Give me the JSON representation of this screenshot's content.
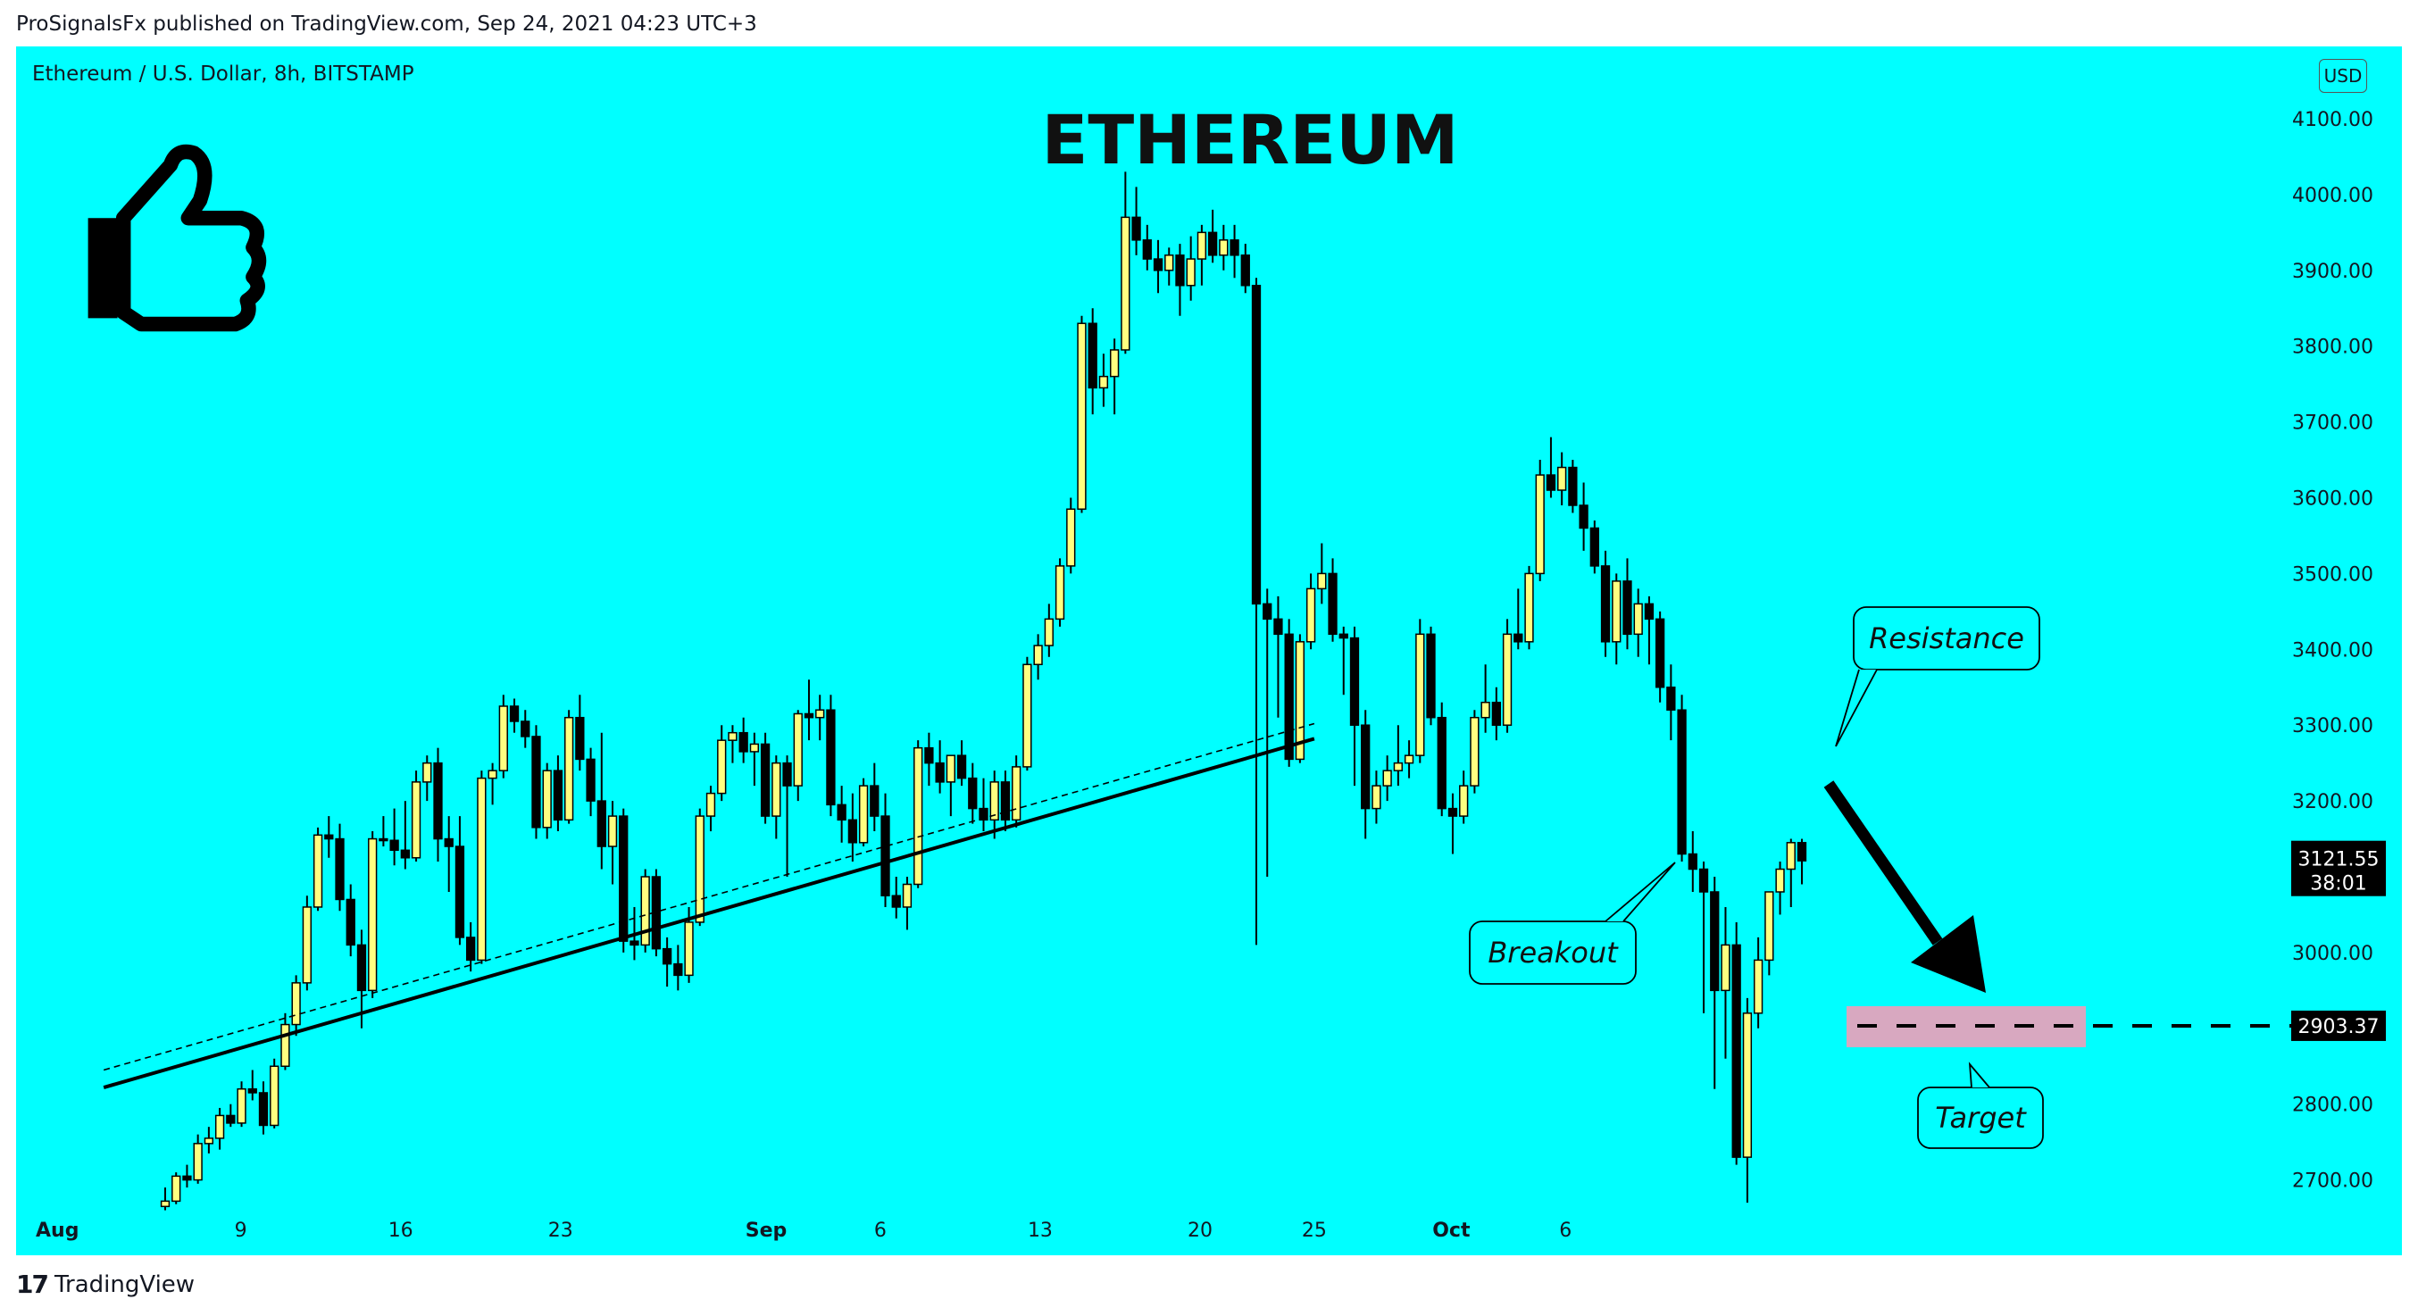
{
  "header": {
    "text": "ProSignalsFx published on TradingView.com, Sep 24, 2021 04:23 UTC+3"
  },
  "symbol": {
    "text": "Ethereum / U.S. Dollar, 8h, BITSTAMP"
  },
  "currency_button": "USD",
  "footer": {
    "brand": "TradingView",
    "mark": "17"
  },
  "colors": {
    "background": "#00ffff",
    "bull": "#ffff80",
    "bear": "#000000",
    "zone": "#d8a8c0"
  },
  "icons": [
    "thumbs-up-icon",
    "tradingview-logo-icon"
  ],
  "chart_data": {
    "type": "candlestick",
    "title": "ETHEREUM",
    "ylim": [
      2650,
      4150
    ],
    "y_ticks": [
      4100,
      4000,
      3900,
      3800,
      3700,
      3600,
      3500,
      3400,
      3300,
      3200,
      3100,
      3000,
      2900,
      2800,
      2700
    ],
    "y_tick_labels": [
      "4100.00",
      "4000.00",
      "3900.00",
      "3800.00",
      "3700.00",
      "3600.00",
      "3500.00",
      "3400.00",
      "3300.00",
      "3200.00",
      "3000.00",
      "2800.00",
      "2700.00"
    ],
    "x_labels": [
      "Aug",
      "9",
      "16",
      "23",
      "Sep",
      "6",
      "13",
      "20",
      "25",
      "Oct",
      "6"
    ],
    "x_dates": [
      "2021-08-01",
      "2021-08-09",
      "2021-08-16",
      "2021-08-23",
      "2021-09-01",
      "2021-09-06",
      "2021-09-13",
      "2021-09-20",
      "2021-09-25",
      "2021-10-01",
      "2021-10-06"
    ],
    "price_label": {
      "value": "3121.55",
      "countdown": "38:01"
    },
    "target_label": "2903.37",
    "target_price": 2903.37,
    "trendlines": [
      {
        "style": "solid",
        "from": [
          "2021-08-03",
          2822
        ],
        "to": [
          "2021-09-25",
          3282
        ]
      },
      {
        "style": "dashed",
        "from": [
          "2021-08-03",
          2845
        ],
        "to": [
          "2021-09-25",
          3302
        ]
      }
    ],
    "annotations": [
      {
        "text": "Resistance"
      },
      {
        "text": "Breakout"
      },
      {
        "text": "Target"
      }
    ],
    "candles_ohlc": [
      [
        2665,
        2690,
        2660,
        2672
      ],
      [
        2672,
        2710,
        2668,
        2705
      ],
      [
        2705,
        2720,
        2690,
        2700
      ],
      [
        2700,
        2760,
        2695,
        2748
      ],
      [
        2748,
        2770,
        2735,
        2755
      ],
      [
        2755,
        2795,
        2740,
        2785
      ],
      [
        2785,
        2800,
        2770,
        2775
      ],
      [
        2775,
        2830,
        2770,
        2820
      ],
      [
        2820,
        2845,
        2805,
        2815
      ],
      [
        2815,
        2830,
        2760,
        2772
      ],
      [
        2772,
        2860,
        2768,
        2850
      ],
      [
        2850,
        2920,
        2845,
        2905
      ],
      [
        2905,
        2970,
        2890,
        2960
      ],
      [
        2960,
        3075,
        2950,
        3060
      ],
      [
        3060,
        3165,
        3055,
        3155
      ],
      [
        3155,
        3180,
        3125,
        3150
      ],
      [
        3150,
        3170,
        3055,
        3070
      ],
      [
        3070,
        3090,
        2995,
        3010
      ],
      [
        3010,
        3030,
        2900,
        2950
      ],
      [
        2950,
        3160,
        2940,
        3150
      ],
      [
        3150,
        3180,
        3140,
        3148
      ],
      [
        3148,
        3190,
        3115,
        3135
      ],
      [
        3135,
        3200,
        3110,
        3125
      ],
      [
        3125,
        3240,
        3120,
        3225
      ],
      [
        3225,
        3260,
        3200,
        3250
      ],
      [
        3250,
        3270,
        3120,
        3150
      ],
      [
        3150,
        3180,
        3080,
        3140
      ],
      [
        3140,
        3180,
        3010,
        3020
      ],
      [
        3020,
        3040,
        2975,
        2990
      ],
      [
        2990,
        3240,
        2985,
        3230
      ],
      [
        3230,
        3250,
        3195,
        3240
      ],
      [
        3240,
        3340,
        3230,
        3325
      ],
      [
        3325,
        3335,
        3290,
        3305
      ],
      [
        3305,
        3320,
        3270,
        3285
      ],
      [
        3285,
        3300,
        3150,
        3165
      ],
      [
        3165,
        3250,
        3150,
        3240
      ],
      [
        3240,
        3260,
        3160,
        3175
      ],
      [
        3175,
        3320,
        3170,
        3310
      ],
      [
        3310,
        3340,
        3240,
        3255
      ],
      [
        3255,
        3270,
        3180,
        3200
      ],
      [
        3200,
        3290,
        3110,
        3140
      ],
      [
        3140,
        3200,
        3090,
        3180
      ],
      [
        3180,
        3190,
        3000,
        3015
      ],
      [
        3015,
        3060,
        2990,
        3010
      ],
      [
        3010,
        3110,
        3000,
        3100
      ],
      [
        3100,
        3110,
        2995,
        3005
      ],
      [
        3005,
        3020,
        2955,
        2985
      ],
      [
        2985,
        3010,
        2950,
        2970
      ],
      [
        2970,
        3060,
        2960,
        3040
      ],
      [
        3040,
        3190,
        3035,
        3180
      ],
      [
        3180,
        3220,
        3160,
        3210
      ],
      [
        3210,
        3300,
        3200,
        3280
      ],
      [
        3280,
        3300,
        3250,
        3290
      ],
      [
        3290,
        3310,
        3250,
        3265
      ],
      [
        3265,
        3290,
        3220,
        3275
      ],
      [
        3275,
        3290,
        3170,
        3180
      ],
      [
        3180,
        3260,
        3150,
        3250
      ],
      [
        3250,
        3260,
        3100,
        3220
      ],
      [
        3220,
        3320,
        3200,
        3315
      ],
      [
        3315,
        3360,
        3280,
        3310
      ],
      [
        3310,
        3340,
        3280,
        3320
      ],
      [
        3320,
        3340,
        3180,
        3195
      ],
      [
        3195,
        3220,
        3145,
        3175
      ],
      [
        3175,
        3210,
        3120,
        3145
      ],
      [
        3145,
        3230,
        3140,
        3220
      ],
      [
        3220,
        3250,
        3160,
        3180
      ],
      [
        3180,
        3210,
        3060,
        3075
      ],
      [
        3075,
        3100,
        3045,
        3060
      ],
      [
        3060,
        3100,
        3030,
        3090
      ],
      [
        3090,
        3280,
        3085,
        3270
      ],
      [
        3270,
        3290,
        3220,
        3250
      ],
      [
        3250,
        3280,
        3210,
        3225
      ],
      [
        3225,
        3260,
        3180,
        3260
      ],
      [
        3260,
        3280,
        3220,
        3230
      ],
      [
        3230,
        3250,
        3170,
        3190
      ],
      [
        3190,
        3230,
        3160,
        3175
      ],
      [
        3175,
        3240,
        3150,
        3225
      ],
      [
        3225,
        3240,
        3160,
        3175
      ],
      [
        3175,
        3260,
        3165,
        3245
      ],
      [
        3245,
        3390,
        3240,
        3380
      ],
      [
        3380,
        3420,
        3360,
        3405
      ],
      [
        3405,
        3460,
        3390,
        3440
      ],
      [
        3440,
        3520,
        3430,
        3510
      ],
      [
        3510,
        3600,
        3500,
        3585
      ],
      [
        3585,
        3840,
        3580,
        3830
      ],
      [
        3830,
        3850,
        3710,
        3745
      ],
      [
        3745,
        3790,
        3720,
        3760
      ],
      [
        3760,
        3810,
        3710,
        3795
      ],
      [
        3795,
        4030,
        3790,
        3970
      ],
      [
        3970,
        4010,
        3920,
        3940
      ],
      [
        3940,
        3960,
        3900,
        3915
      ],
      [
        3915,
        3940,
        3870,
        3900
      ],
      [
        3900,
        3930,
        3880,
        3920
      ],
      [
        3920,
        3935,
        3840,
        3880
      ],
      [
        3880,
        3945,
        3860,
        3915
      ],
      [
        3915,
        3960,
        3880,
        3950
      ],
      [
        3950,
        3980,
        3910,
        3920
      ],
      [
        3920,
        3960,
        3900,
        3940
      ],
      [
        3940,
        3960,
        3890,
        3920
      ],
      [
        3920,
        3935,
        3870,
        3880
      ],
      [
        3880,
        3890,
        3010,
        3460
      ],
      [
        3460,
        3480,
        3100,
        3440
      ],
      [
        3440,
        3470,
        3310,
        3420
      ],
      [
        3420,
        3440,
        3245,
        3255
      ],
      [
        3255,
        3420,
        3250,
        3410
      ],
      [
        3410,
        3500,
        3400,
        3480
      ],
      [
        3480,
        3540,
        3460,
        3500
      ],
      [
        3500,
        3520,
        3410,
        3420
      ],
      [
        3420,
        3430,
        3340,
        3415
      ],
      [
        3415,
        3430,
        3220,
        3300
      ],
      [
        3300,
        3320,
        3150,
        3190
      ],
      [
        3190,
        3240,
        3170,
        3220
      ],
      [
        3220,
        3260,
        3200,
        3240
      ],
      [
        3240,
        3300,
        3220,
        3250
      ],
      [
        3250,
        3280,
        3230,
        3260
      ],
      [
        3260,
        3440,
        3250,
        3420
      ],
      [
        3420,
        3430,
        3300,
        3310
      ],
      [
        3310,
        3330,
        3180,
        3190
      ],
      [
        3190,
        3210,
        3130,
        3180
      ],
      [
        3180,
        3240,
        3170,
        3220
      ],
      [
        3220,
        3320,
        3210,
        3310
      ],
      [
        3310,
        3380,
        3290,
        3330
      ],
      [
        3330,
        3350,
        3280,
        3300
      ],
      [
        3300,
        3440,
        3290,
        3420
      ],
      [
        3420,
        3480,
        3400,
        3410
      ],
      [
        3410,
        3510,
        3400,
        3500
      ],
      [
        3500,
        3650,
        3490,
        3630
      ],
      [
        3630,
        3680,
        3600,
        3610
      ],
      [
        3610,
        3660,
        3590,
        3640
      ],
      [
        3640,
        3650,
        3580,
        3590
      ],
      [
        3590,
        3620,
        3530,
        3560
      ],
      [
        3560,
        3570,
        3500,
        3510
      ],
      [
        3510,
        3530,
        3390,
        3410
      ],
      [
        3410,
        3500,
        3380,
        3490
      ],
      [
        3490,
        3520,
        3400,
        3420
      ],
      [
        3420,
        3480,
        3390,
        3460
      ],
      [
        3460,
        3470,
        3380,
        3440
      ],
      [
        3440,
        3450,
        3330,
        3350
      ],
      [
        3350,
        3380,
        3280,
        3320
      ],
      [
        3320,
        3340,
        3120,
        3130
      ],
      [
        3130,
        3160,
        3080,
        3110
      ],
      [
        3110,
        3120,
        2920,
        3080
      ],
      [
        3080,
        3100,
        2820,
        2950
      ],
      [
        2950,
        3060,
        2860,
        3010
      ],
      [
        3010,
        3040,
        2720,
        2730
      ],
      [
        2730,
        2940,
        2670,
        2920
      ],
      [
        2920,
        3020,
        2900,
        2990
      ],
      [
        2990,
        3080,
        2970,
        3080
      ],
      [
        3080,
        3120,
        3050,
        3110
      ],
      [
        3110,
        3150,
        3060,
        3145
      ],
      [
        3145,
        3150,
        3090,
        3121
      ]
    ]
  }
}
